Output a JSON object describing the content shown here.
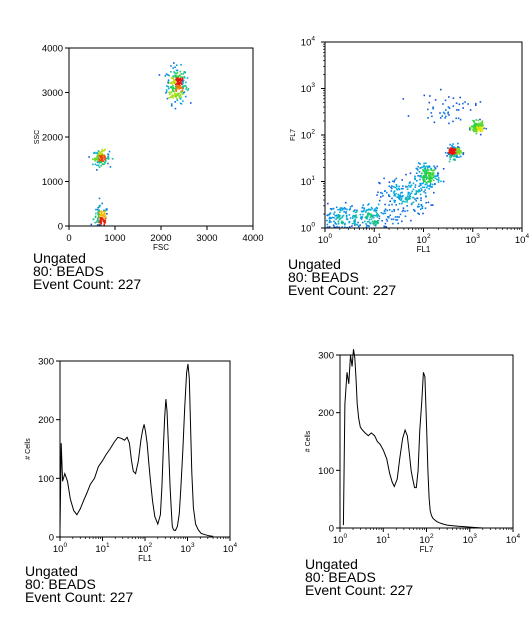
{
  "chart_data": [
    {
      "type": "scatter",
      "panel": "dot-fsc-ssc",
      "xlabel": "FSC",
      "ylabel": "SSC",
      "xlim": [
        0,
        4000
      ],
      "ylim": [
        0,
        4000
      ],
      "xticks": [
        "0",
        "1000",
        "2000",
        "3000",
        "4000"
      ],
      "yticks": [
        "0",
        "1000",
        "2000",
        "3000",
        "4000"
      ],
      "populations": [
        {
          "x": 2330,
          "y": 3180,
          "spread_x": 110,
          "spread_y": 200,
          "count": 220
        },
        {
          "x": 680,
          "y": 1550,
          "spread_x": 90,
          "spread_y": 80,
          "count": 110
        },
        {
          "x": 680,
          "y": 180,
          "spread_x": 80,
          "spread_y": 140,
          "count": 110
        }
      ],
      "caption": {
        "gate": "Ungated",
        "sample": "80: BEADS",
        "event_count": "Event Count: 227"
      }
    },
    {
      "type": "scatter",
      "panel": "dot-fl1-fl7",
      "xlabel": "FL1",
      "ylabel": "FL7",
      "xscale": "log",
      "yscale": "log",
      "xlim": [
        1,
        10000
      ],
      "ylim": [
        1,
        10000
      ],
      "xticks": [
        "10",
        "10",
        "10",
        "10",
        "10"
      ],
      "xtick_exponents": [
        "0",
        "1",
        "2",
        "3",
        "4"
      ],
      "yticks": [
        "10",
        "10",
        "10",
        "10",
        "10"
      ],
      "ytick_exponents": [
        "0",
        "1",
        "2",
        "3",
        "4"
      ],
      "populations": [
        {
          "x": 1.8,
          "y": 1.6,
          "spread_x": 0.25,
          "spread_y": 0.15,
          "count": 150
        },
        {
          "x": 8,
          "y": 1.8,
          "spread_x": 0.3,
          "spread_y": 0.15,
          "count": 170
        },
        {
          "x": 40,
          "y": 5,
          "spread_x": 0.25,
          "spread_y": 0.2,
          "count": 180
        },
        {
          "x": 120,
          "y": 14,
          "spread_x": 0.12,
          "spread_y": 0.12,
          "count": 170
        },
        {
          "x": 400,
          "y": 45,
          "spread_x": 0.07,
          "spread_y": 0.07,
          "count": 140
        },
        {
          "x": 1200,
          "y": 150,
          "spread_x": 0.06,
          "spread_y": 0.06,
          "count": 130
        },
        {
          "x": 300,
          "y": 400,
          "spread_x": 0.3,
          "spread_y": 0.15,
          "count": 50
        }
      ],
      "caption": {
        "gate": "Ungated",
        "sample": "80: BEADS",
        "event_count": "Event Count: 227"
      }
    },
    {
      "type": "line",
      "panel": "hist-fl1",
      "xlabel": "FL1",
      "ylabel": "# Cells",
      "xscale": "log",
      "xlim": [
        1,
        10000
      ],
      "ylim": [
        0,
        300
      ],
      "xticks": [
        "10",
        "10",
        "10",
        "10",
        "10"
      ],
      "xtick_exponents": [
        "0",
        "1",
        "2",
        "3",
        "4"
      ],
      "yticks": [
        "0",
        "100",
        "200",
        "300"
      ],
      "x": [
        1,
        1.07,
        1.15,
        1.3,
        1.5,
        1.75,
        2.1,
        2.5,
        3,
        3.6,
        4.3,
        5.2,
        6.5,
        8,
        10,
        12,
        15,
        19,
        23,
        28,
        33,
        38,
        43,
        48,
        53,
        60,
        70,
        80,
        88,
        95,
        103,
        112,
        122,
        135,
        150,
        170,
        200,
        230,
        250,
        270,
        290,
        310,
        330,
        360,
        390,
        420,
        440,
        470,
        520,
        580,
        640,
        700,
        780,
        860,
        950,
        1030,
        1100,
        1170,
        1260,
        1380,
        1550,
        1800,
        2100,
        2600,
        3200,
        4000
      ],
      "values": [
        10,
        160,
        95,
        108,
        95,
        65,
        45,
        38,
        48,
        62,
        75,
        90,
        100,
        120,
        130,
        140,
        150,
        162,
        170,
        168,
        165,
        170,
        160,
        130,
        112,
        108,
        130,
        165,
        182,
        192,
        180,
        160,
        128,
        95,
        62,
        35,
        22,
        38,
        85,
        150,
        205,
        235,
        215,
        150,
        85,
        40,
        18,
        12,
        11,
        18,
        40,
        85,
        150,
        220,
        280,
        295,
        270,
        200,
        110,
        50,
        22,
        12,
        6,
        4,
        2,
        1
      ],
      "caption": {
        "gate": "Ungated",
        "sample": "80: BEADS",
        "event_count": "Event Count: 227"
      }
    },
    {
      "type": "line",
      "panel": "hist-fl7",
      "xlabel": "FL7",
      "ylabel": "# Cells",
      "xscale": "log",
      "xlim": [
        1,
        10000
      ],
      "ylim": [
        0,
        300
      ],
      "xticks": [
        "10",
        "10",
        "10",
        "10",
        "10"
      ],
      "xtick_exponents": [
        "0",
        "1",
        "2",
        "3",
        "4"
      ],
      "yticks": [
        "0",
        "100",
        "200",
        "300"
      ],
      "x": [
        1.2,
        1.3,
        1.45,
        1.6,
        1.75,
        1.9,
        2.05,
        2.2,
        2.35,
        2.5,
        2.7,
        2.95,
        3.3,
        3.8,
        4.5,
        5.3,
        6.3,
        7.3,
        8.5,
        10,
        12,
        14,
        16,
        18,
        21,
        24,
        28,
        32,
        36,
        40,
        44,
        48,
        53,
        58,
        64,
        70,
        78,
        85,
        92,
        100,
        108,
        115,
        122,
        130,
        140,
        155,
        175,
        200,
        240,
        300,
        400,
        550,
        800,
        1200,
        2000
      ],
      "values": [
        5,
        215,
        270,
        250,
        300,
        280,
        310,
        295,
        260,
        215,
        190,
        175,
        170,
        165,
        160,
        165,
        160,
        150,
        145,
        135,
        120,
        95,
        80,
        72,
        85,
        120,
        155,
        170,
        160,
        130,
        100,
        85,
        70,
        70,
        100,
        170,
        220,
        270,
        262,
        180,
        100,
        52,
        30,
        22,
        17,
        14,
        11,
        9,
        7,
        5,
        4,
        3,
        2,
        1,
        0
      ],
      "caption": {
        "gate": "Ungated",
        "sample": "80: BEADS",
        "event_count": "Event Count: 227"
      }
    }
  ]
}
